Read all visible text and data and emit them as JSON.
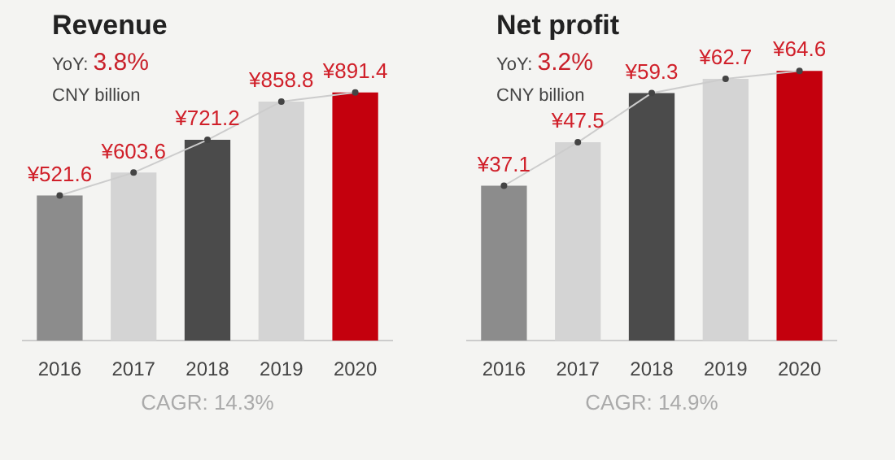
{
  "chart_data": [
    {
      "type": "bar",
      "title": "Revenue",
      "subtitle": "YoY: 3.8%",
      "ylabel": "CNY billion",
      "categories": [
        "2016",
        "2017",
        "2018",
        "2019",
        "2020"
      ],
      "series": [
        {
          "values": [
            521.6,
            603.6,
            721.2,
            858.8,
            891.4
          ],
          "colors": [
            "#8c8c8c",
            "#d4d4d4",
            "#4b4b4b",
            "#d4d4d4",
            "#c4000d"
          ]
        },
        {
          "type": "line",
          "color": "#cccccc",
          "values": [
            521.6,
            603.6,
            721.2,
            858.8,
            891.4
          ],
          "value_labels": [
            "¥521.6",
            "¥603.6",
            "¥721.2",
            "¥858.8",
            "¥891.4"
          ]
        }
      ],
      "marker": "circle",
      "annotations": [
        "CAGR: 14.3%"
      ]
    },
    {
      "type": "bar",
      "title": "Net profit",
      "subtitle": "YoY: 3.2%",
      "ylabel": "CNY billion",
      "categories": [
        "2016",
        "2017",
        "2018",
        "2019",
        "2020"
      ],
      "series": [
        {
          "values": [
            37.1,
            47.5,
            59.3,
            62.7,
            64.6
          ],
          "colors": [
            "#8c8c8c",
            "#d4d4d4",
            "#4b4b4b",
            "#d4d4d4",
            "#c4000d"
          ]
        },
        {
          "type": "line",
          "color": "#cccccc",
          "values": [
            37.1,
            47.5,
            59.3,
            62.7,
            64.6
          ],
          "value_labels": [
            "¥37.1",
            "¥47.5",
            "¥59.3",
            "¥62.7",
            "¥64.6"
          ]
        }
      ],
      "marker": "circle",
      "annotations": [
        "CAGR: 14.9%"
      ]
    }
  ]
}
